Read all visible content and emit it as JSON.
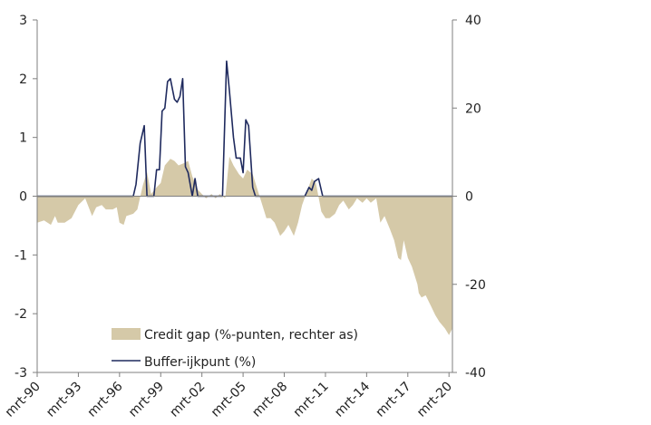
{
  "chart_data": {
    "type": "area",
    "title": "",
    "xlabel": "",
    "ylabel": "",
    "x_ticks": [
      "mrt-90",
      "mrt-93",
      "mrt-96",
      "mrt-99",
      "mrt-02",
      "mrt-05",
      "mrt-08",
      "mrt-11",
      "mrt-14",
      "mrt-17",
      "mrt-20"
    ],
    "left_axis": {
      "ylim": [
        -3,
        3
      ],
      "ticks": [
        "3",
        "2",
        "1",
        "0",
        "-1",
        "-2",
        "-3"
      ]
    },
    "right_axis": {
      "ylim": [
        -40,
        40
      ],
      "ticks": [
        "40",
        "20",
        "0",
        "-20",
        "-40"
      ]
    },
    "x_range": [
      1990.0,
      2020.25
    ],
    "grid": false,
    "legend_position": "bottom-left",
    "series": [
      {
        "name": "Credit gap (%-punten, rechter as)",
        "type": "area",
        "axis": "right",
        "color": "#d5c9a8",
        "points": [
          [
            1990.0,
            -6.0
          ],
          [
            1990.5,
            -5.5
          ],
          [
            1991.0,
            -6.5
          ],
          [
            1991.3,
            -4.5
          ],
          [
            1991.5,
            -6.0
          ],
          [
            1992.0,
            -6.0
          ],
          [
            1992.5,
            -5.0
          ],
          [
            1993.0,
            -2.0
          ],
          [
            1993.5,
            -0.5
          ],
          [
            1994.0,
            -4.5
          ],
          [
            1994.3,
            -2.5
          ],
          [
            1994.7,
            -2.0
          ],
          [
            1995.0,
            -3.0
          ],
          [
            1995.5,
            -3.0
          ],
          [
            1995.8,
            -2.5
          ],
          [
            1996.0,
            -6.0
          ],
          [
            1996.3,
            -6.5
          ],
          [
            1996.5,
            -4.5
          ],
          [
            1997.0,
            -4.0
          ],
          [
            1997.3,
            -3.0
          ],
          [
            1997.7,
            2.5
          ],
          [
            1998.0,
            5.5
          ],
          [
            1998.3,
            0.5
          ],
          [
            1998.7,
            2.0
          ],
          [
            1999.0,
            3.0
          ],
          [
            1999.3,
            7.0
          ],
          [
            1999.7,
            8.5
          ],
          [
            2000.0,
            8.0
          ],
          [
            2000.3,
            7.0
          ],
          [
            2000.7,
            7.5
          ],
          [
            2001.0,
            8.0
          ],
          [
            2001.3,
            4.5
          ],
          [
            2001.7,
            1.5
          ],
          [
            2002.0,
            0.5
          ],
          [
            2002.3,
            -0.5
          ],
          [
            2002.7,
            0.5
          ],
          [
            2003.0,
            -0.5
          ],
          [
            2003.3,
            0.5
          ],
          [
            2003.7,
            -0.5
          ],
          [
            2004.0,
            9.0
          ],
          [
            2004.3,
            7.0
          ],
          [
            2004.7,
            5.0
          ],
          [
            2005.0,
            4.0
          ],
          [
            2005.3,
            6.0
          ],
          [
            2005.7,
            5.0
          ],
          [
            2006.0,
            2.0
          ],
          [
            2006.3,
            -1.0
          ],
          [
            2006.7,
            -5.0
          ],
          [
            2007.0,
            -5.0
          ],
          [
            2007.3,
            -6.0
          ],
          [
            2007.7,
            -9.0
          ],
          [
            2008.0,
            -8.0
          ],
          [
            2008.3,
            -6.5
          ],
          [
            2008.7,
            -9.0
          ],
          [
            2009.0,
            -6.0
          ],
          [
            2009.3,
            -2.0
          ],
          [
            2009.7,
            1.5
          ],
          [
            2010.0,
            4.0
          ],
          [
            2010.3,
            3.0
          ],
          [
            2010.7,
            -3.5
          ],
          [
            2011.0,
            -5.0
          ],
          [
            2011.3,
            -5.0
          ],
          [
            2011.7,
            -4.0
          ],
          [
            2012.0,
            -2.0
          ],
          [
            2012.3,
            -1.0
          ],
          [
            2012.7,
            -3.0
          ],
          [
            2013.0,
            -2.0
          ],
          [
            2013.3,
            -0.5
          ],
          [
            2013.7,
            -1.5
          ],
          [
            2014.0,
            -0.5
          ],
          [
            2014.3,
            -1.5
          ],
          [
            2014.7,
            -0.5
          ],
          [
            2015.0,
            -6.0
          ],
          [
            2015.3,
            -4.5
          ],
          [
            2015.7,
            -7.5
          ],
          [
            2016.0,
            -10.0
          ],
          [
            2016.3,
            -14.0
          ],
          [
            2016.5,
            -14.5
          ],
          [
            2016.7,
            -10.0
          ],
          [
            2017.0,
            -14.0
          ],
          [
            2017.3,
            -16.0
          ],
          [
            2017.7,
            -20.0
          ],
          [
            2017.8,
            -22.0
          ],
          [
            2018.0,
            -23.0
          ],
          [
            2018.3,
            -22.5
          ],
          [
            2018.7,
            -25.0
          ],
          [
            2019.0,
            -27.0
          ],
          [
            2019.3,
            -28.5
          ],
          [
            2019.7,
            -30.0
          ],
          [
            2020.0,
            -31.5
          ],
          [
            2020.25,
            -30.0
          ]
        ]
      },
      {
        "name": "Buffer-ijkpunt (%)",
        "type": "line",
        "axis": "left",
        "color": "#1f2a5e",
        "points": [
          [
            1990.0,
            0
          ],
          [
            1997.0,
            0
          ],
          [
            1997.2,
            0.2
          ],
          [
            1997.5,
            0.9
          ],
          [
            1997.8,
            1.2
          ],
          [
            1998.0,
            0
          ],
          [
            1998.5,
            0
          ],
          [
            1998.7,
            0.45
          ],
          [
            1998.9,
            0.45
          ],
          [
            1999.1,
            1.45
          ],
          [
            1999.3,
            1.5
          ],
          [
            1999.5,
            1.95
          ],
          [
            1999.7,
            2.0
          ],
          [
            2000.0,
            1.65
          ],
          [
            2000.2,
            1.6
          ],
          [
            2000.4,
            1.7
          ],
          [
            2000.6,
            2.0
          ],
          [
            2000.8,
            0.5
          ],
          [
            2001.0,
            0.4
          ],
          [
            2001.3,
            0
          ],
          [
            2001.5,
            0.3
          ],
          [
            2001.7,
            0
          ],
          [
            2003.5,
            0
          ],
          [
            2003.8,
            2.3
          ],
          [
            2004.0,
            1.8
          ],
          [
            2004.3,
            1.0
          ],
          [
            2004.5,
            0.65
          ],
          [
            2004.8,
            0.65
          ],
          [
            2005.0,
            0.4
          ],
          [
            2005.2,
            1.3
          ],
          [
            2005.4,
            1.2
          ],
          [
            2005.7,
            0.15
          ],
          [
            2005.9,
            0
          ],
          [
            2009.5,
            0
          ],
          [
            2009.8,
            0.15
          ],
          [
            2010.0,
            0.1
          ],
          [
            2010.2,
            0.25
          ],
          [
            2010.5,
            0.3
          ],
          [
            2010.8,
            0
          ],
          [
            2020.25,
            0
          ]
        ]
      }
    ]
  }
}
